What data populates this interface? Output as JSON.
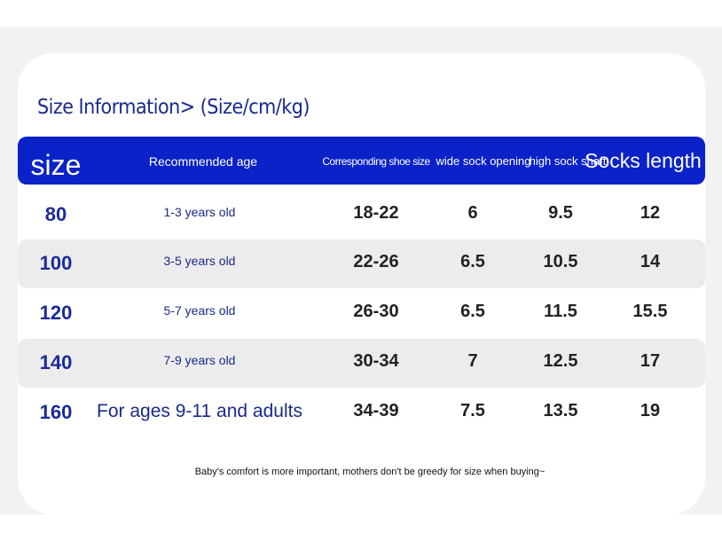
{
  "title": "Size Information> (Size/cm/kg)",
  "table": {
    "headers": [
      "size",
      "Recommended age",
      "Corresponding shoe size",
      "wide sock opening",
      "high sock shaft",
      "Socks length"
    ],
    "rows": [
      [
        "80",
        "1-3 years old",
        "18-22",
        "6",
        "9.5",
        "12"
      ],
      [
        "100",
        "3-5 years old",
        "22-26",
        "6.5",
        "10.5",
        "14"
      ],
      [
        "120",
        "5-7 years old",
        "26-30",
        "6.5",
        "11.5",
        "15.5"
      ],
      [
        "140",
        "7-9 years old",
        "30-34",
        "7",
        "12.5",
        "17"
      ],
      [
        "160",
        "For ages 9-11 and adults",
        "34-39",
        "7.5",
        "13.5",
        "19"
      ]
    ]
  },
  "footnote": "Baby's comfort is more important, mothers don't be greedy for size when buying~"
}
